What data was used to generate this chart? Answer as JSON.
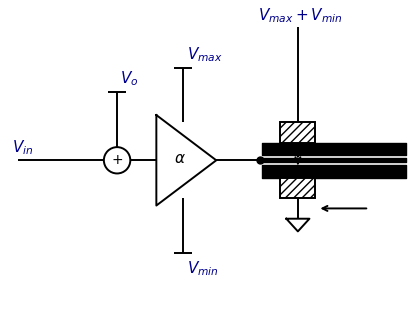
{
  "bg_color": "#ffffff",
  "line_color": "#000000",
  "text_color": "#00008B",
  "fig_width": 4.16,
  "fig_height": 3.18,
  "labels": {
    "Vin": "$V_{in}$",
    "Vo": "$V_o$",
    "Vmax": "$V_{max}$",
    "Vmin": "$V_{min}$",
    "Vmax_Vmin": "$V_{max}+V_{min}$",
    "alpha": "$\\alpha$"
  }
}
